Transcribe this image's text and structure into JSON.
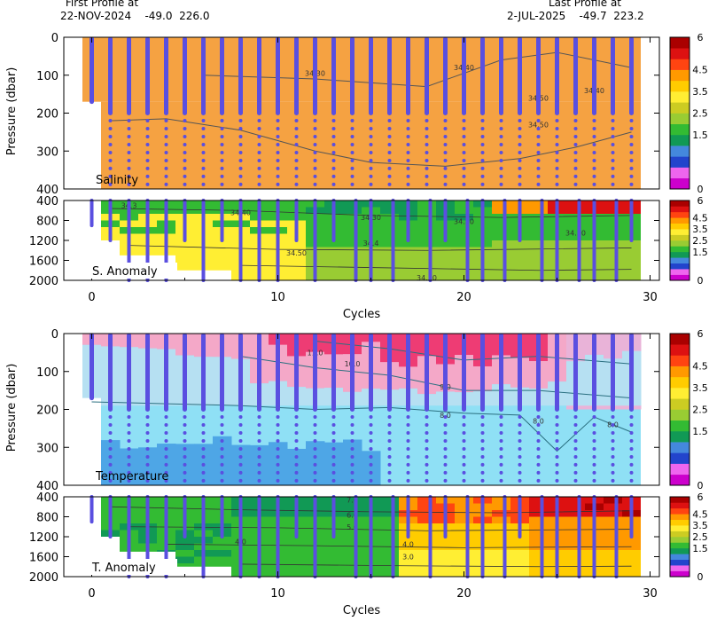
{
  "header": {
    "first_line1": "First Profile at",
    "first_line2": "22-NOV-2024    -49.0  226.0",
    "last_line1": "Last Profile at",
    "last_line2": "2-JUL-2025    -49.7  223.2"
  },
  "colors": {
    "profile_marker": "#5a4fe0",
    "salinity_fill": "#f5a242",
    "contour": "#555555",
    "colorbar": [
      "#cc00cc",
      "#ee66ee",
      "#2244cc",
      "#4488dd",
      "#119955",
      "#33bb33",
      "#99cc33",
      "#cccc22",
      "#ffee33",
      "#ffcc00",
      "#ff9900",
      "#ff4411",
      "#dd1111",
      "#aa0000"
    ]
  },
  "chart_data": [
    {
      "type": "heatmap",
      "panel": "top",
      "label": "Salinity",
      "ylabel": "Pressure (dbar)",
      "xlabel": "Cycles",
      "xlim": [
        -1.5,
        30.5
      ],
      "ylim_upper": [
        0,
        400
      ],
      "ylim_lower": [
        400,
        2000
      ],
      "lower_label": "S. Anomaly",
      "x_ticks": [
        "0",
        "10",
        "20",
        "30"
      ],
      "y_ticks_upper": [
        "0",
        "100",
        "200",
        "300",
        "400"
      ],
      "y_ticks_lower": [
        "400",
        "800",
        "1200",
        "1600",
        "2000"
      ],
      "contour_labels": [
        "34.30",
        "34.40",
        "34.50",
        "34.40",
        "34.50",
        "34.3",
        "34.40",
        "34.30",
        "34.30",
        "34.4",
        "34.50",
        "34.50",
        "34.30"
      ],
      "colorbar_ticks": [
        "6",
        "4.5",
        "3.5",
        "2.5",
        "1.5",
        "0"
      ],
      "cycles": [
        0,
        1,
        2,
        3,
        4,
        5,
        6,
        7,
        8,
        9,
        10,
        11,
        12,
        13,
        14,
        15,
        16,
        17,
        18,
        19,
        20,
        21,
        22,
        23,
        24,
        25,
        26,
        27,
        28,
        29
      ]
    },
    {
      "type": "heatmap",
      "panel": "bottom",
      "label": "Temperature",
      "ylabel": "Pressure (dbar)",
      "xlabel": "Cycles",
      "xlim": [
        -1.5,
        30.5
      ],
      "ylim_upper": [
        0,
        400
      ],
      "ylim_lower": [
        400,
        2000
      ],
      "lower_label": "T. Anomaly",
      "x_ticks": [
        "0",
        "10",
        "20",
        "30"
      ],
      "y_ticks_upper": [
        "0",
        "100",
        "200",
        "300",
        "400"
      ],
      "y_ticks_lower": [
        "400",
        "800",
        "1200",
        "1600",
        "2000"
      ],
      "contour_labels": [
        "11.0",
        "10.0",
        "9.0",
        "8.0",
        "8.0",
        "8.0",
        "7.0",
        "6.0",
        "5.0",
        "4.0",
        "4.0",
        "3.0"
      ],
      "colorbar_ticks": [
        "6",
        "4.5",
        "3.5",
        "2.5",
        "1.5",
        "0"
      ],
      "cycles": [
        0,
        1,
        2,
        3,
        4,
        5,
        6,
        7,
        8,
        9,
        10,
        11,
        12,
        13,
        14,
        15,
        16,
        17,
        18,
        19,
        20,
        21,
        22,
        23,
        24,
        25,
        26,
        27,
        28,
        29
      ]
    }
  ]
}
